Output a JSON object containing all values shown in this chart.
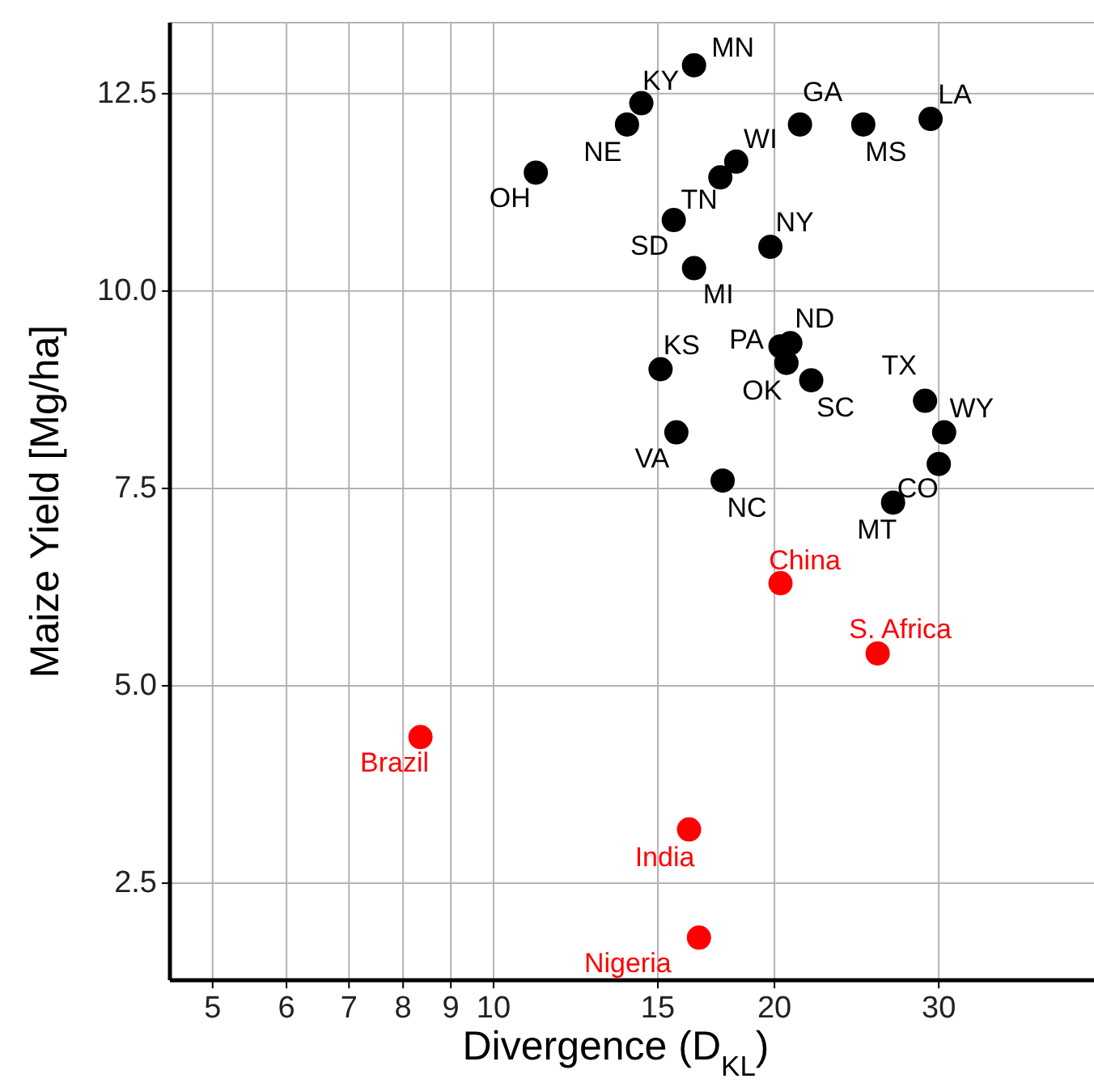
{
  "chart_data": {
    "type": "scatter",
    "xlabel": "Divergence (D$_{KL}$)",
    "ylabel": "Maize Yield [Mg/ha]",
    "log": "x",
    "grid": true,
    "marker": "circle",
    "xlim": [
      4.5,
      44
    ],
    "xticks": [
      5,
      6,
      7,
      8,
      9,
      10,
      15,
      20,
      30
    ],
    "ylim": [
      1.27,
      13.4
    ],
    "yticks": [
      2.5,
      {
        "value": 5,
        "label": "5.0"
      },
      7.5,
      {
        "value": 10,
        "label": "10.0"
      },
      12.5
    ],
    "series": [
      {
        "color": "#000000",
        "x": [
          16.4,
          14.4,
          13.9,
          11.1,
          21.3,
          24.9,
          29.4,
          18.2,
          17.5,
          15.6,
          19.8,
          16.4,
          20.8,
          20.3,
          20.6,
          21.9,
          15.1,
          29.0,
          30.4,
          30.0,
          26.8,
          15.7,
          17.6
        ],
        "values": [
          12.86,
          12.38,
          12.11,
          11.5,
          12.11,
          12.11,
          12.18,
          11.64,
          11.44,
          10.9,
          10.56,
          10.29,
          9.34,
          9.3,
          9.09,
          8.87,
          9.01,
          8.61,
          8.21,
          7.81,
          7.32,
          8.21,
          7.6
        ],
        "value_labels": [
          "MN",
          "KY",
          "NE",
          "OH",
          "GA",
          "MS",
          "LA",
          "WI",
          "TN",
          "SD",
          "NY",
          "MI",
          "ND",
          "PA",
          "OK",
          "SC",
          "KS",
          "TX",
          "WY",
          "CO",
          "MT",
          "VA",
          "NC"
        ]
      },
      {
        "color": "#ff0000",
        "x": [
          20.3,
          25.8,
          8.35,
          16.2,
          16.6
        ],
        "values": [
          6.3,
          5.41,
          4.35,
          3.18,
          1.81
        ],
        "value_labels": [
          "China",
          "S. Africa",
          "Brazil",
          "India",
          "Nigeria"
        ]
      }
    ]
  }
}
